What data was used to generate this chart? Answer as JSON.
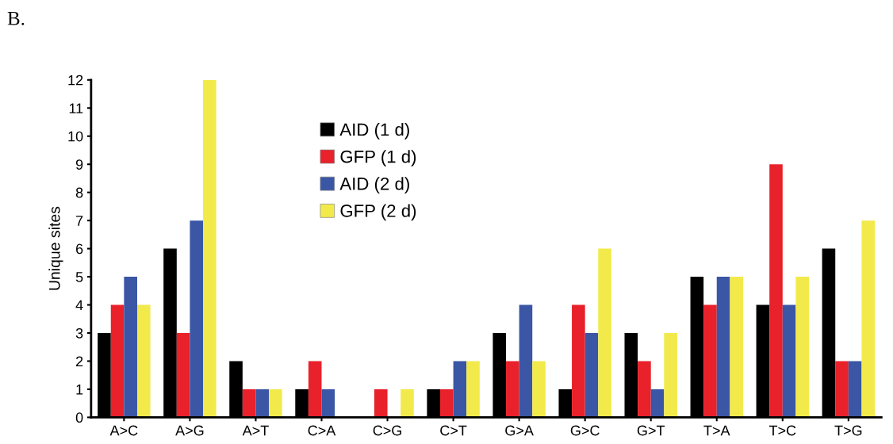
{
  "chart_data": {
    "type": "bar",
    "ylabel": "Unique sites",
    "annotations": [
      "B."
    ],
    "categories": [
      "A>C",
      "A>G",
      "A>T",
      "C>A",
      "C>G",
      "C>T",
      "G>A",
      "G>C",
      "G>T",
      "T>A",
      "T>C",
      "T>G"
    ],
    "series": [
      {
        "name": "AID (1 d)",
        "color": "#000000",
        "values": [
          3,
          6,
          2,
          1,
          0,
          1,
          3,
          1,
          3,
          5,
          4,
          6
        ]
      },
      {
        "name": "GFP (1 d)",
        "color": "#e8212b",
        "values": [
          4,
          3,
          1,
          2,
          1,
          1,
          2,
          4,
          2,
          4,
          9,
          2
        ]
      },
      {
        "name": "AID (2 d)",
        "color": "#3a56a5",
        "values": [
          5,
          7,
          1,
          1,
          0,
          2,
          4,
          3,
          1,
          5,
          4,
          2
        ]
      },
      {
        "name": "GFP (2 d)",
        "color": "#f2ea4a",
        "values": [
          4,
          12,
          1,
          0,
          1,
          2,
          2,
          6,
          3,
          5,
          5,
          7
        ]
      }
    ],
    "ylim": [
      0,
      12
    ],
    "yticks": [
      0,
      1,
      2,
      3,
      4,
      5,
      6,
      7,
      8,
      9,
      10,
      11,
      12
    ],
    "grid": false,
    "legend": "top"
  }
}
